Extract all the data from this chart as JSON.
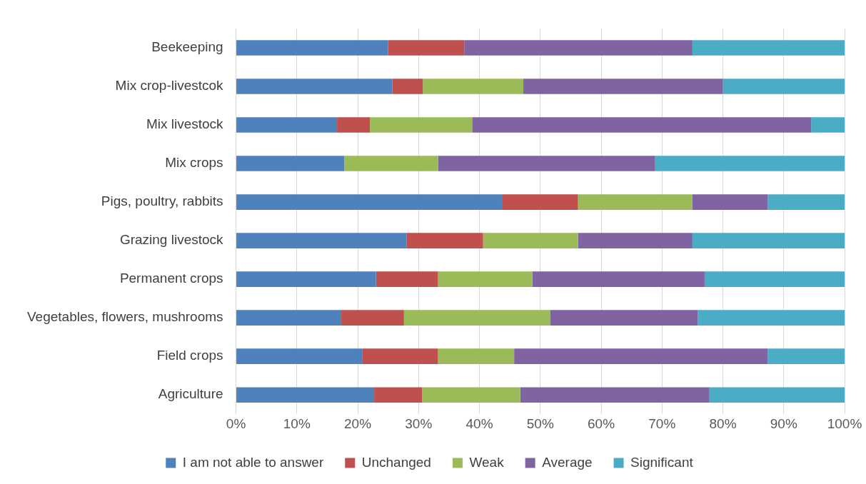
{
  "chart_data": {
    "type": "bar",
    "orientation": "horizontal",
    "stacked": true,
    "grid": "x",
    "legend": "bottom",
    "categories": [
      "Beekeeping",
      "Mix crop-livestcok",
      "Mix livestock",
      "Mix crops",
      "Pigs, poultry, rabbits",
      "Grazing livestock",
      "Permanent crops",
      "Vegetables, flowers, mushrooms",
      "Field crops",
      "Agriculture"
    ],
    "xlim": [
      0,
      100
    ],
    "xticks": [
      {
        "value": 0,
        "label": "0%"
      },
      {
        "value": 10,
        "label": "10%"
      },
      {
        "value": 20,
        "label": "20%"
      },
      {
        "value": 30,
        "label": "30%"
      },
      {
        "value": 40,
        "label": "40%"
      },
      {
        "value": 50,
        "label": "50%"
      },
      {
        "value": 60,
        "label": "60%"
      },
      {
        "value": 70,
        "label": "70%"
      },
      {
        "value": 80,
        "label": "80%"
      },
      {
        "value": 90,
        "label": "90%"
      },
      {
        "value": 100,
        "label": "100%"
      }
    ],
    "series": [
      {
        "name": "I am not able to answer",
        "color": "#4f81bd",
        "values": [
          25,
          25.7,
          16.6,
          17.8,
          43.7,
          28,
          23,
          17.3,
          20.8,
          22.7
        ]
      },
      {
        "name": "Unchanged",
        "color": "#c0504d",
        "values": [
          12.5,
          5,
          5.4,
          0,
          12.5,
          12.6,
          10.2,
          10.3,
          12.4,
          7.9
        ]
      },
      {
        "name": "Weak",
        "color": "#9bbb59",
        "values": [
          0,
          16.5,
          16.8,
          15.4,
          18.8,
          15.6,
          15.5,
          24,
          12.5,
          16.1
        ]
      },
      {
        "name": "Average",
        "color": "#8064a2",
        "values": [
          37.5,
          32.8,
          55.7,
          35.6,
          12.4,
          18.8,
          28.3,
          24.3,
          41.7,
          31.1
        ]
      },
      {
        "name": "Significant",
        "color": "#4bacc6",
        "values": [
          25,
          20,
          5.5,
          31.2,
          12.6,
          25,
          23,
          24.1,
          12.6,
          22.2
        ]
      }
    ]
  }
}
